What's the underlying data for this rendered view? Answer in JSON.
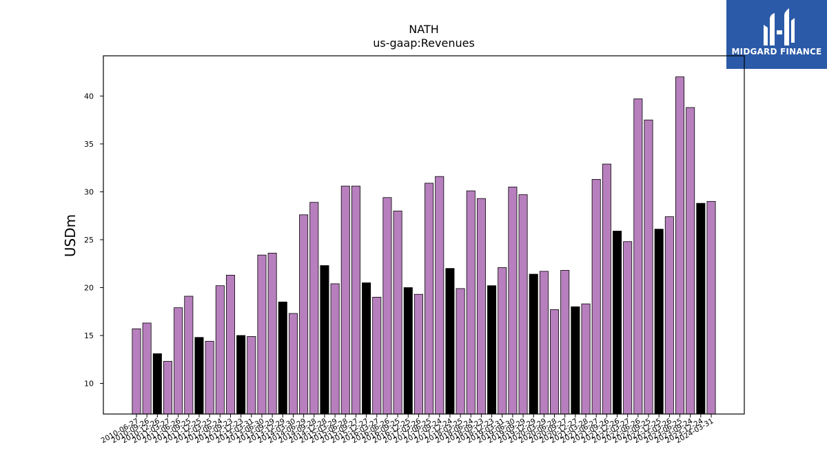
{
  "header": {
    "title": "NATH",
    "subtitle": "us-gaap:Revenues"
  },
  "logo": {
    "text": "MIDGARD FINANCE",
    "color": "#2b5aa8"
  },
  "colors": {
    "default_bar": "#b77fbd",
    "q4_bar": "#000000"
  },
  "chart_data": {
    "type": "bar",
    "title": "NATH",
    "subtitle": "us-gaap:Revenues",
    "xlabel": "",
    "ylabel": "USDm",
    "ylim": [
      6.8,
      44.2
    ],
    "yticks": [
      10,
      15,
      20,
      25,
      30,
      35,
      40
    ],
    "grid": false,
    "categories": [
      "2010-06-27",
      "2010-09-26",
      "2010-12-26",
      "2011-03-27",
      "2011-06-26",
      "2011-09-25",
      "2011-12-25",
      "2012-03-25",
      "2012-06-24",
      "2012-09-23",
      "2012-12-23",
      "2013-03-31",
      "2013-06-30",
      "2013-09-29",
      "2013-12-29",
      "2014-03-30",
      "2014-06-29",
      "2014-09-28",
      "2014-12-28",
      "2015-03-29",
      "2015-06-28",
      "2015-09-27",
      "2015-12-27",
      "2016-03-27",
      "2016-06-26",
      "2016-09-25",
      "2016-12-25",
      "2017-03-26",
      "2017-06-25",
      "2017-09-24",
      "2017-12-24",
      "2018-03-25",
      "2018-06-24",
      "2018-09-23",
      "2018-12-23",
      "2019-03-31",
      "2019-06-30",
      "2019-09-29",
      "2019-12-29",
      "2020-03-29",
      "2020-06-28",
      "2020-09-27",
      "2020-12-27",
      "2021-03-28",
      "2021-06-27",
      "2021-09-26",
      "2021-12-26",
      "2022-03-27",
      "2022-06-26",
      "2022-09-25",
      "2022-12-25",
      "2023-03-26",
      "2023-06-25",
      "2023-09-24",
      "2023-12-24",
      "2024-03-31"
    ],
    "values": [
      15.7,
      16.3,
      13.1,
      12.3,
      17.9,
      19.1,
      14.8,
      14.4,
      20.2,
      21.3,
      15.0,
      14.9,
      23.4,
      23.6,
      18.5,
      17.3,
      27.6,
      28.9,
      22.3,
      20.4,
      30.6,
      30.6,
      20.5,
      19.0,
      29.4,
      28.0,
      20.0,
      19.3,
      30.9,
      31.6,
      22.0,
      19.9,
      30.1,
      29.3,
      20.2,
      22.1,
      30.5,
      29.7,
      21.4,
      21.7,
      17.7,
      21.8,
      18.0,
      18.3,
      31.3,
      32.9,
      25.9,
      24.8,
      39.7,
      37.5,
      26.1,
      27.4,
      42.0,
      38.8,
      28.8,
      29.0
    ],
    "highlight_indices": [
      2,
      6,
      10,
      14,
      18,
      22,
      26,
      30,
      34,
      38,
      42,
      46,
      50,
      54
    ]
  }
}
